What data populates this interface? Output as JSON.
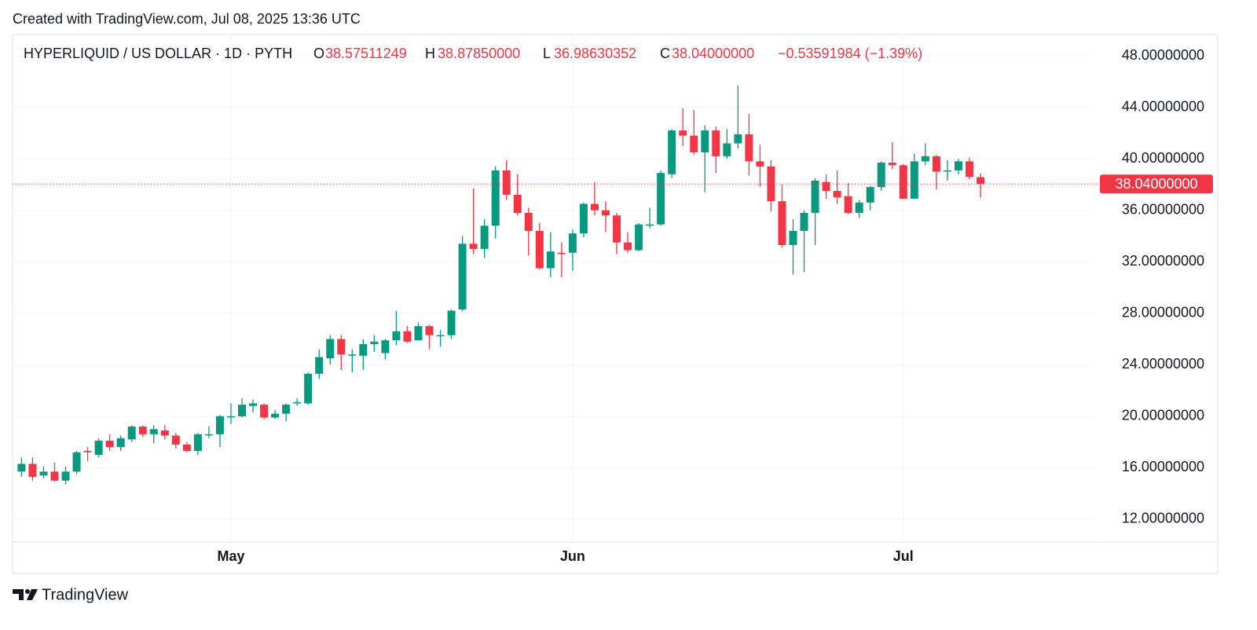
{
  "watermark": "Created with TradingView.com, Jul 08, 2025 13:36 UTC",
  "brand": "TradingView",
  "chart_data": {
    "type": "candlestick",
    "header": {
      "symbol": "HYPERLIQUID / US DOLLAR · 1D · PYTH",
      "open_label": "O",
      "open": "38.57511249",
      "high_label": "H",
      "high": "38.87850000",
      "low_label": "L",
      "low": "36.98630352",
      "close_label": "C",
      "close": "38.04000000",
      "change": "−0.53591984 (−1.39%)"
    },
    "categories": [
      null,
      null,
      null,
      null,
      null,
      null,
      null,
      null,
      null,
      null,
      null,
      null,
      null,
      null,
      null,
      null,
      null,
      null,
      null,
      "May",
      null,
      null,
      null,
      null,
      null,
      null,
      null,
      null,
      null,
      null,
      null,
      null,
      null,
      null,
      null,
      null,
      null,
      null,
      null,
      null,
      null,
      null,
      null,
      null,
      null,
      null,
      null,
      null,
      null,
      null,
      "Jun",
      null,
      null,
      null,
      null,
      null,
      null,
      null,
      null,
      null,
      null,
      null,
      null,
      null,
      null,
      null,
      null,
      null,
      null,
      null,
      null,
      null,
      null,
      null,
      null,
      null,
      null,
      null,
      null,
      null,
      "Jul",
      null,
      null,
      null,
      null,
      null,
      null,
      null
    ],
    "open": [
      15.7,
      16.3,
      15.4,
      15.7,
      15.0,
      15.7,
      17.3,
      17.0,
      18.1,
      17.6,
      18.2,
      19.2,
      18.6,
      18.9,
      18.5,
      17.8,
      17.3,
      18.6,
      18.6,
      20.0,
      20.0,
      20.8,
      20.9,
      19.9,
      20.2,
      21.0,
      21.0,
      23.3,
      24.5,
      26.0,
      24.8,
      24.7,
      25.6,
      24.9,
      25.9,
      26.6,
      25.9,
      27.0,
      26.3,
      26.3,
      28.3,
      33.4,
      33.0,
      34.8,
      39.1,
      37.2,
      35.8,
      34.4,
      31.5,
      32.7,
      32.7,
      34.2,
      36.5,
      36.0,
      35.6,
      33.5,
      32.9,
      34.9,
      34.9,
      38.8,
      42.2,
      41.8,
      40.5,
      42.2,
      40.2,
      41.2,
      41.9,
      39.8,
      39.4,
      36.7,
      33.3,
      34.4,
      35.8,
      38.2,
      37.5,
      37.1,
      35.8,
      36.6,
      37.8,
      39.7,
      39.5,
      36.9,
      39.8,
      40.2,
      39.1,
      39.1,
      39.8,
      38.57511249
    ],
    "high": [
      16.8,
      16.8,
      16.1,
      16.4,
      16.1,
      17.3,
      17.6,
      18.3,
      18.6,
      18.5,
      19.3,
      19.3,
      19.3,
      19.3,
      18.7,
      18.0,
      18.7,
      19.2,
      20.1,
      21.0,
      21.4,
      21.3,
      21.0,
      20.5,
      21.0,
      21.4,
      23.4,
      25.2,
      26.3,
      26.3,
      25.2,
      26.0,
      26.3,
      26.0,
      28.2,
      27.0,
      27.3,
      27.1,
      26.7,
      28.3,
      34.0,
      37.7,
      35.3,
      39.4,
      39.9,
      38.8,
      36.2,
      35.0,
      34.3,
      33.5,
      34.5,
      36.6,
      38.2,
      36.7,
      35.8,
      34.3,
      35.0,
      36.2,
      39.1,
      42.3,
      43.9,
      43.8,
      42.6,
      42.5,
      42.3,
      45.7,
      43.5,
      41.1,
      39.9,
      38.0,
      35.3,
      36.0,
      38.5,
      38.8,
      39.1,
      38.1,
      36.8,
      37.9,
      39.8,
      41.3,
      39.6,
      40.4,
      41.2,
      40.3,
      39.9,
      40.0,
      40.1,
      38.8785
    ],
    "low": [
      15.3,
      15.0,
      15.2,
      14.9,
      14.7,
      15.5,
      16.5,
      16.8,
      17.3,
      17.3,
      18.0,
      18.4,
      17.9,
      18.2,
      17.5,
      17.2,
      17.0,
      18.3,
      17.6,
      19.4,
      19.9,
      20.3,
      19.8,
      19.8,
      19.6,
      20.8,
      20.9,
      22.9,
      24.0,
      23.6,
      23.4,
      23.6,
      25.0,
      24.4,
      25.5,
      25.7,
      25.9,
      25.2,
      25.4,
      26.0,
      28.2,
      32.6,
      32.3,
      33.8,
      36.8,
      35.6,
      32.5,
      31.4,
      30.8,
      30.8,
      31.3,
      33.9,
      35.6,
      34.3,
      32.6,
      32.7,
      32.8,
      34.6,
      34.8,
      38.5,
      41.0,
      40.3,
      37.4,
      38.9,
      40.0,
      40.8,
      38.7,
      37.8,
      35.9,
      33.1,
      31.0,
      31.2,
      33.3,
      36.9,
      36.5,
      35.7,
      35.4,
      36.0,
      37.5,
      39.2,
      36.9,
      36.9,
      39.5,
      37.6,
      38.3,
      38.8,
      38.4,
      36.98630352
    ],
    "close": [
      16.3,
      15.3,
      15.7,
      15.0,
      15.7,
      17.2,
      17.2,
      18.1,
      17.6,
      18.3,
      19.2,
      18.6,
      19.0,
      18.5,
      17.8,
      17.3,
      18.6,
      18.6,
      20.0,
      20.0,
      20.9,
      21.0,
      19.9,
      20.2,
      20.9,
      21.1,
      23.3,
      24.6,
      26.0,
      24.8,
      24.8,
      25.6,
      25.8,
      25.9,
      26.6,
      25.8,
      27.0,
      26.3,
      26.3,
      28.2,
      33.4,
      33.0,
      34.8,
      39.1,
      37.2,
      35.8,
      34.4,
      31.5,
      32.8,
      32.6,
      34.2,
      36.5,
      36.0,
      35.6,
      33.5,
      32.9,
      34.9,
      34.9,
      38.9,
      42.2,
      41.8,
      40.5,
      42.2,
      40.2,
      41.2,
      41.9,
      39.8,
      39.4,
      36.7,
      33.3,
      34.4,
      35.8,
      38.3,
      37.5,
      37.0,
      35.8,
      36.6,
      37.8,
      39.7,
      39.5,
      36.9,
      39.8,
      40.2,
      39.0,
      39.1,
      39.8,
      38.6,
      38.04
    ],
    "up_color": "#089981",
    "down_color": "#f23645",
    "ylim": [
      10.23,
      49.65
    ],
    "yticks": [
      {
        "value": 12,
        "label": "12.00000000"
      },
      {
        "value": 16,
        "label": "16.00000000"
      },
      {
        "value": 20,
        "label": "20.00000000"
      },
      {
        "value": 24,
        "label": "24.00000000"
      },
      {
        "value": 28,
        "label": "28.00000000"
      },
      {
        "value": 32,
        "label": "32.00000000"
      },
      {
        "value": 36,
        "label": "36.00000000"
      },
      {
        "value": 40,
        "label": "40.00000000"
      },
      {
        "value": 44,
        "label": "44.00000000"
      },
      {
        "value": 48,
        "label": "48.00000000"
      }
    ],
    "grid": true,
    "last_price": {
      "value": 38.04,
      "label": "38.04000000"
    }
  }
}
